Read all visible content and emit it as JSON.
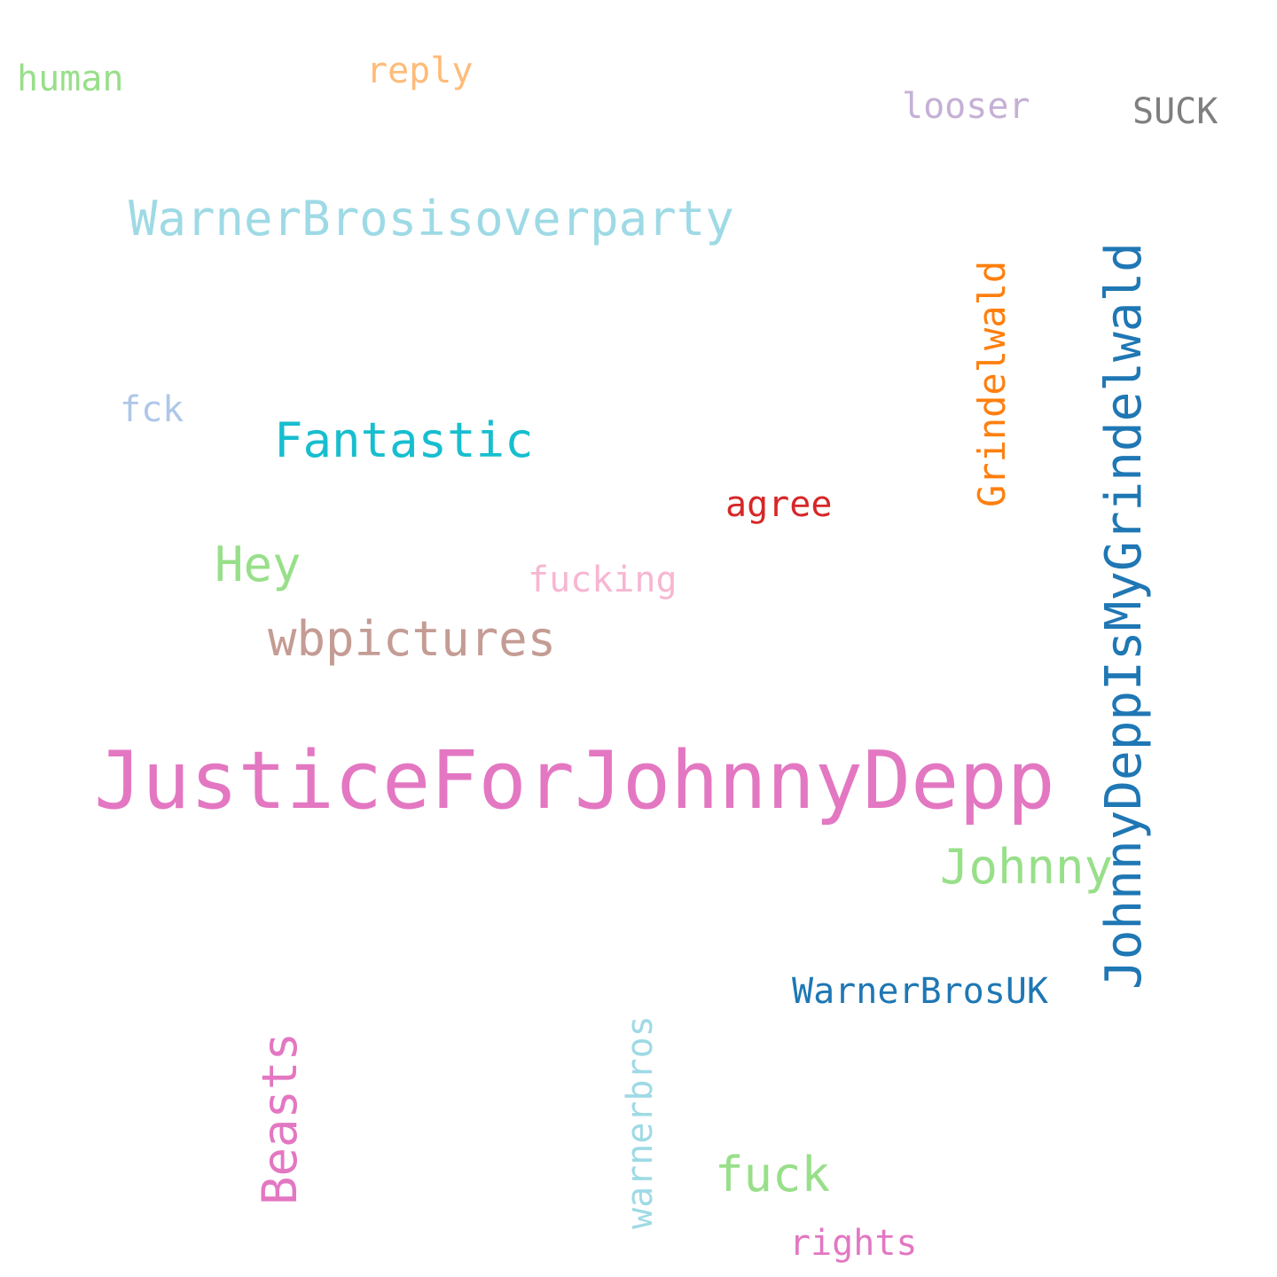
{
  "words": [
    {
      "text": "JusticeForJohnnyDepp",
      "color": "#e377c2"
    },
    {
      "text": "JohnnyDeppIsMyGrindelwald",
      "color": "#1f77b4"
    },
    {
      "text": "WarnerBrosisoverparty",
      "color": "#9edae5"
    },
    {
      "text": "wbpictures",
      "color": "#c49c94"
    },
    {
      "text": "Fantastic",
      "color": "#17becf"
    },
    {
      "text": "Johnny",
      "color": "#98df8a"
    },
    {
      "text": "Hey",
      "color": "#98df8a"
    },
    {
      "text": "Grindelwald",
      "color": "#ff7f0e"
    },
    {
      "text": "Beasts",
      "color": "#e377c2"
    },
    {
      "text": "fuck",
      "color": "#98df8a"
    },
    {
      "text": "WarnerBrosUK",
      "color": "#1f77b4"
    },
    {
      "text": "warnerbros",
      "color": "#9edae5"
    },
    {
      "text": "agree",
      "color": "#d62728"
    },
    {
      "text": "fucking",
      "color": "#f7b6d2"
    },
    {
      "text": "SUCK",
      "color": "#7f7f7f"
    },
    {
      "text": "looser",
      "color": "#c5b0d5"
    },
    {
      "text": "reply",
      "color": "#ffbb78"
    },
    {
      "text": "human",
      "color": "#98df8a"
    },
    {
      "text": "fck",
      "color": "#aec7e8"
    },
    {
      "text": "rights",
      "color": "#e377c2"
    }
  ]
}
